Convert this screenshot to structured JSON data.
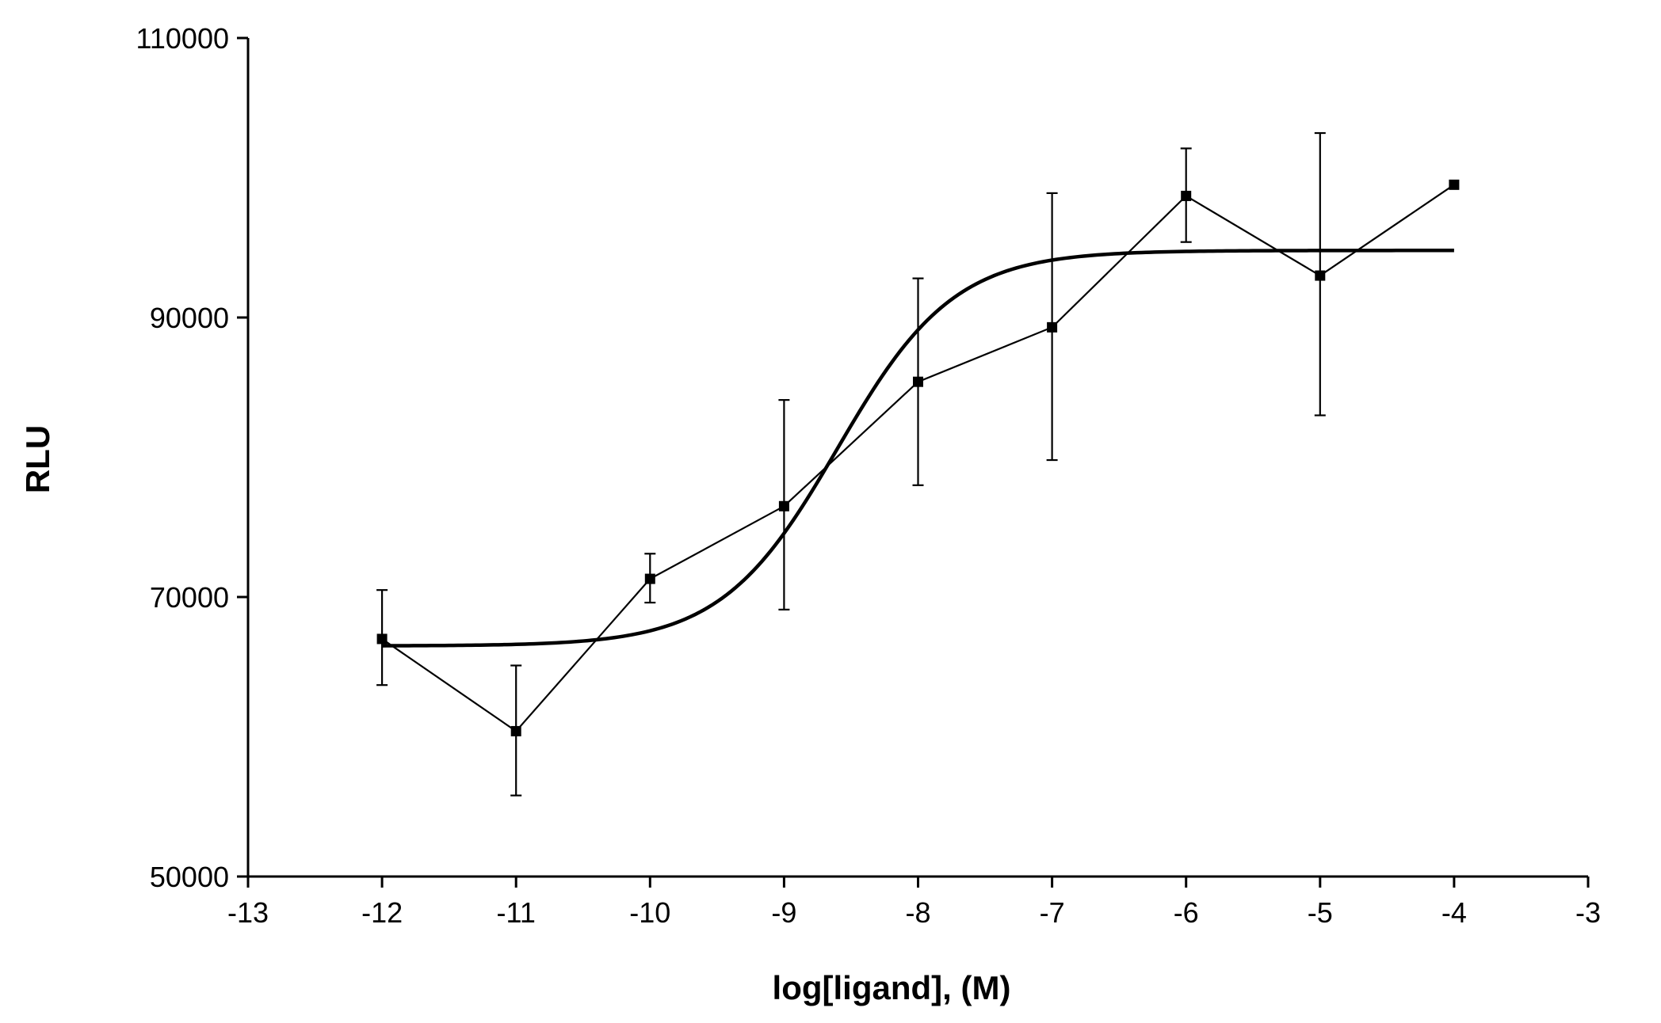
{
  "chart_data": {
    "type": "line",
    "xlabel": "log[ligand], (M)",
    "ylabel": "RLU",
    "xlim": [
      -13,
      -3
    ],
    "ylim": [
      50000,
      110000
    ],
    "x_ticks": [
      -13,
      -12,
      -11,
      -10,
      -9,
      -8,
      -7,
      -6,
      -5,
      -4,
      -3
    ],
    "y_ticks": [
      50000,
      70000,
      90000,
      110000
    ],
    "grid": false,
    "legend": "none",
    "series": [
      {
        "kind": "data-with-error",
        "x": [
          -12,
          -11,
          -10,
          -9,
          -8,
          -7,
          -6,
          -5,
          -4
        ],
        "y": [
          67000,
          60400,
          71300,
          76500,
          85400,
          89300,
          98700,
          93000,
          99500
        ],
        "err_low": [
          63700,
          55800,
          69600,
          69100,
          78000,
          79800,
          95400,
          83000,
          99500
        ],
        "err_high": [
          70500,
          65100,
          73100,
          84100,
          92800,
          98900,
          102100,
          103200,
          99500
        ]
      },
      {
        "kind": "fit",
        "model": "sigmoidal dose-response",
        "bottom": 66500,
        "top": 94800,
        "logEC50": -8.6,
        "hill": 1.0,
        "x_range": [
          -12,
          -4
        ]
      }
    ]
  }
}
